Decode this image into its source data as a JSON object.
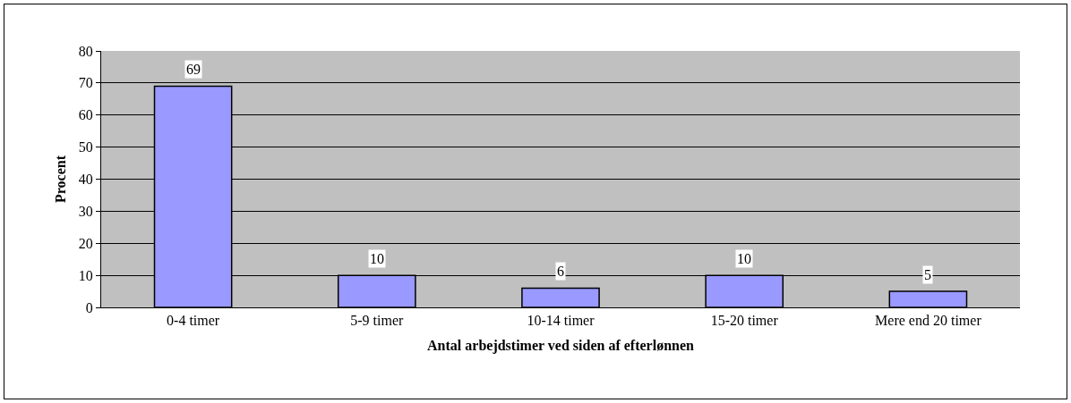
{
  "chart_data": {
    "type": "bar",
    "xlabel": "Antal arbejdstimer ved siden af efterlønnen",
    "ylabel": "Procent",
    "categories": [
      "0-4 timer",
      "5-9 timer",
      "10-14 timer",
      "15-20 timer",
      "Mere end 20 timer"
    ],
    "values": [
      69,
      10,
      6,
      10,
      5
    ],
    "color": "#9999ff",
    "data_labels": true,
    "ylim": [
      0,
      80
    ],
    "yticks": [
      0,
      10,
      20,
      30,
      40,
      50,
      60,
      70,
      80
    ],
    "grid": "y",
    "legend": false
  }
}
